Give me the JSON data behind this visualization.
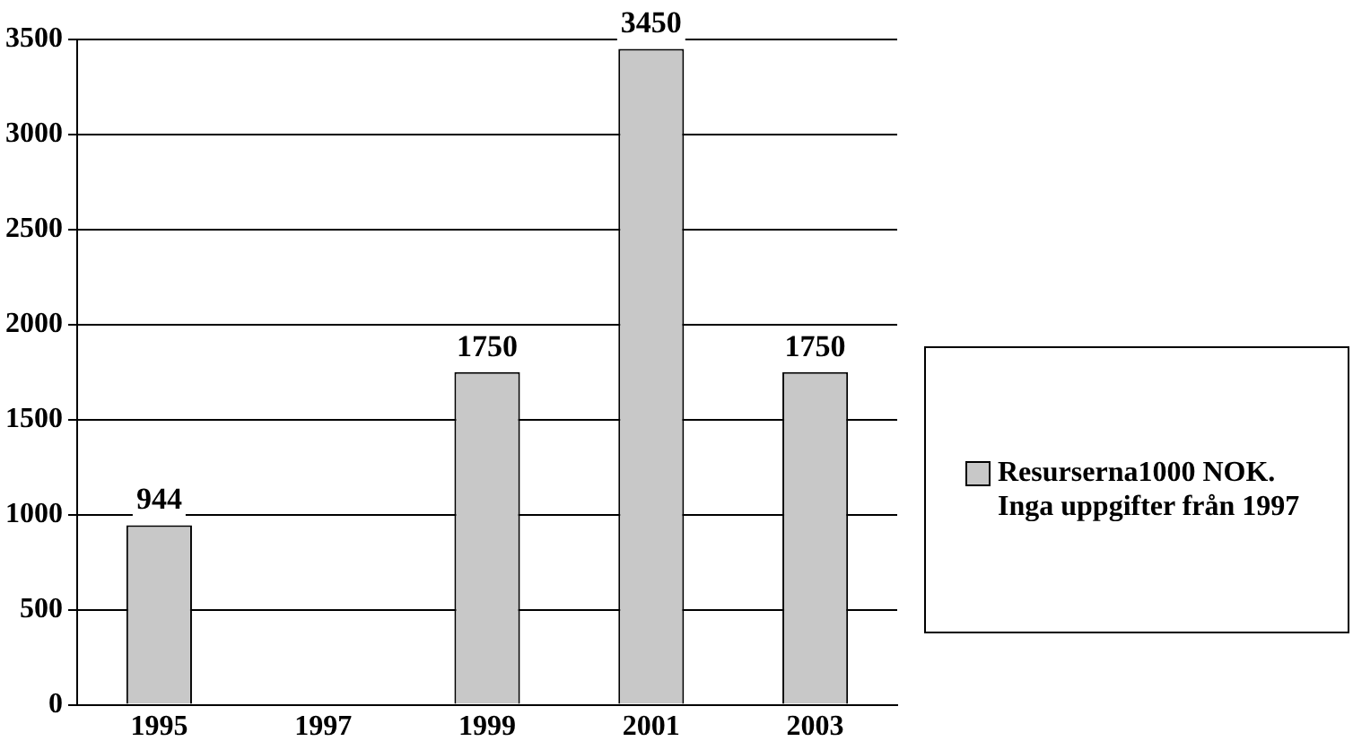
{
  "chart_data": {
    "type": "bar",
    "categories": [
      "1995",
      "1997",
      "1999",
      "2001",
      "2003"
    ],
    "series": [
      {
        "name": "Resurserna1000 NOK. Inga uppgifter från 1997",
        "color": "#c8c8c8",
        "values": [
          944,
          null,
          1750,
          3450,
          1750
        ]
      }
    ],
    "ylim": [
      0,
      3500
    ],
    "yticks": [
      0,
      500,
      1000,
      1500,
      2000,
      2500,
      3000,
      3500
    ],
    "grid": "y",
    "legend": "right",
    "data_labels": true
  }
}
